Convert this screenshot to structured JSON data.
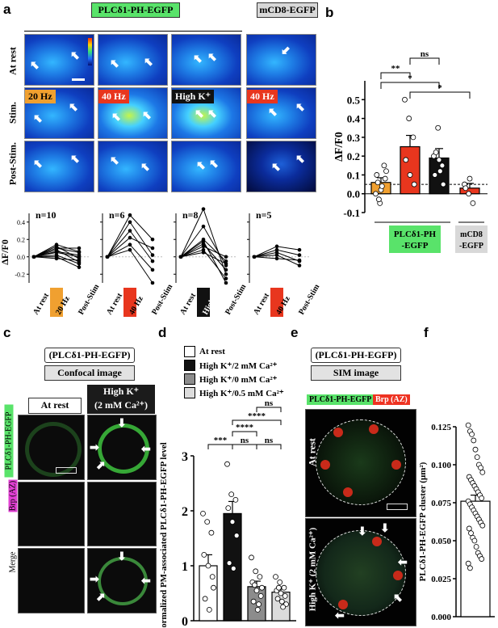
{
  "panel_labels": {
    "a": "a",
    "b": "b",
    "c": "c",
    "d": "d",
    "e": "e",
    "f": "f"
  },
  "panel_a": {
    "header_plc": "PLCδ1-PH-EGFP",
    "header_mcd8": "mCD8-EGFP",
    "row_labels": [
      "At rest",
      "Stim.",
      "Post-Stim."
    ],
    "stim_tags": [
      "20 Hz",
      "40 Hz",
      "High K⁺",
      "40 Hz"
    ],
    "colors": {
      "orange": "#f0a030",
      "red": "#e8361e",
      "black": "#111111",
      "green": "#59e36a",
      "grey": "#cfcfcf"
    }
  },
  "chart_data": [
    {
      "id": "a_plots",
      "type": "line",
      "ylabel": "ΔF/F0",
      "ylim": [
        -0.3,
        0.5
      ],
      "yticks": [
        -0.2,
        0.0,
        0.2,
        0.4
      ],
      "subplots": [
        {
          "n_label": "n=10",
          "categories": [
            "At rest",
            "20 Hz",
            "Post-Stim"
          ],
          "tag_color": "#f0a030",
          "lines": [
            [
              0,
              0.05,
              0.0
            ],
            [
              0,
              0.1,
              0.05
            ],
            [
              0,
              0.12,
              -0.02
            ],
            [
              0,
              0.08,
              -0.06
            ],
            [
              0,
              0.02,
              -0.08
            ],
            [
              0,
              0.0,
              -0.12
            ],
            [
              0,
              0.14,
              0.06
            ],
            [
              0,
              0.06,
              0.02
            ],
            [
              0,
              -0.02,
              -0.04
            ],
            [
              0,
              0.1,
              0.1
            ]
          ]
        },
        {
          "n_label": "n=6",
          "categories": [
            "At rest",
            "40 Hz",
            "Post-Stim"
          ],
          "tag_color": "#e8361e",
          "lines": [
            [
              0,
              0.48,
              0.2
            ],
            [
              0,
              0.4,
              0.02
            ],
            [
              0,
              0.3,
              -0.05
            ],
            [
              0,
              0.22,
              0.1
            ],
            [
              0,
              0.14,
              -0.15
            ],
            [
              0,
              0.08,
              -0.3
            ]
          ]
        },
        {
          "n_label": "n=8",
          "categories": [
            "At rest",
            "High K⁺",
            "Post-Stim"
          ],
          "tag_color": "#111111",
          "lines": [
            [
              0,
              0.55,
              -0.2
            ],
            [
              0,
              0.35,
              -0.1
            ],
            [
              0,
              0.2,
              -0.05
            ],
            [
              0,
              0.15,
              -0.15
            ],
            [
              0,
              0.12,
              0.0
            ],
            [
              0,
              0.08,
              -0.25
            ],
            [
              0,
              0.05,
              -0.08
            ],
            [
              0,
              0.18,
              -0.3
            ]
          ]
        },
        {
          "n_label": "n=5",
          "categories": [
            "At rest",
            "40 Hz",
            "Post-Stim"
          ],
          "tag_color": "#e8361e",
          "lines": [
            [
              0,
              0.12,
              0.08
            ],
            [
              0,
              0.08,
              0.02
            ],
            [
              0,
              0.05,
              -0.05
            ],
            [
              0,
              0.02,
              -0.1
            ],
            [
              0,
              -0.02,
              -0.04
            ]
          ]
        }
      ]
    },
    {
      "id": "b",
      "type": "bar",
      "ylabel": "ΔF/F0",
      "ylim": [
        -0.1,
        0.6
      ],
      "yticks": [
        -0.1,
        0.0,
        0.1,
        0.2,
        0.3,
        0.4,
        0.5
      ],
      "values": [
        0.06,
        0.25,
        0.19,
        0.03
      ],
      "errors": [
        0.025,
        0.06,
        0.05,
        0.025
      ],
      "colors": [
        "#f0a030",
        "#e8361e",
        "#111111",
        "#e8361e"
      ],
      "points": [
        [
          0.0,
          -0.05,
          0.15,
          0.1,
          0.02,
          0.08,
          0.06,
          0.04,
          0.12,
          -0.03
        ],
        [
          0.5,
          0.4,
          0.3,
          0.18,
          0.1,
          0.05
        ],
        [
          0.2,
          0.35,
          0.15,
          0.1,
          0.18,
          0.05,
          0.22,
          0.12
        ],
        [
          0.05,
          0.0,
          -0.05,
          0.03,
          0.08
        ]
      ],
      "group_labels": [
        "PLCδ1-PH\n-EGFP",
        "mCD8\n-EGFP"
      ],
      "dashed_level": 0.05,
      "significance": [
        "ns",
        "**",
        "*",
        "*"
      ]
    },
    {
      "id": "d",
      "type": "bar",
      "ylabel": "Normalized  PM-associated PLCδ1-PH-EGFP  level",
      "ylim": [
        0,
        3
      ],
      "yticks": [
        0,
        1,
        2,
        3
      ],
      "categories": [
        "At rest",
        "High K⁺/2 mM Ca²⁺",
        "High K⁺/0 mM Ca²⁺",
        "High K⁺/0.5 mM Ca²⁺"
      ],
      "values": [
        1.0,
        1.95,
        0.62,
        0.52
      ],
      "errors": [
        0.2,
        0.22,
        0.1,
        0.06
      ],
      "colors": [
        "#ffffff",
        "#111111",
        "#8c8c8c",
        "#dcdcdc"
      ],
      "points": [
        [
          1.95,
          1.8,
          1.6,
          1.2,
          1.0,
          0.8,
          0.4,
          0.2,
          0.6
        ],
        [
          2.85,
          2.3,
          2.2,
          2.05,
          1.8,
          1.55,
          1.05,
          0.95
        ],
        [
          1.15,
          0.9,
          0.8,
          0.7,
          0.55,
          0.45,
          0.35,
          0.2,
          0.6,
          0.65,
          0.3
        ],
        [
          0.8,
          0.7,
          0.6,
          0.55,
          0.5,
          0.45,
          0.4,
          0.35,
          0.3,
          0.6,
          0.25
        ]
      ],
      "significance": [
        "ns",
        "****",
        "****",
        "***",
        "ns",
        "ns"
      ]
    },
    {
      "id": "f",
      "type": "bar",
      "ylabel": "PLCδ1-PH-EGFP cluster (μm²)",
      "ylim": [
        0,
        0.125
      ],
      "yticks": [
        0.0,
        0.025,
        0.05,
        0.075,
        0.1,
        0.125
      ],
      "ytick_labels": [
        "0.000",
        "0.025",
        "0.050",
        "0.075",
        "0.100",
        "0.125"
      ],
      "values": [
        0.076
      ],
      "errors": [
        0.004
      ],
      "colors": [
        "#ffffff"
      ],
      "points": [
        [
          0.126,
          0.122,
          0.12,
          0.116,
          0.11,
          0.105,
          0.1,
          0.098,
          0.095,
          0.092,
          0.09,
          0.088,
          0.086,
          0.084,
          0.082,
          0.08,
          0.078,
          0.076,
          0.074,
          0.072,
          0.07,
          0.068,
          0.066,
          0.064,
          0.062,
          0.06,
          0.058,
          0.055,
          0.052,
          0.05,
          0.046,
          0.042,
          0.04,
          0.038,
          0.035,
          0.032
        ]
      ]
    }
  ],
  "panel_c": {
    "title": "(PLCδ1-PH-EGFP)",
    "subtitle": "Confocal image",
    "col_rest": "At rest",
    "col_highk": "High K⁺\n(2 mM Ca²⁺)",
    "row_labels": [
      "PLCδ1-PH-EGFP",
      "Brp (AZ)",
      "Merge"
    ]
  },
  "panel_d_legend": [
    "At rest",
    "High K⁺/2 mM Ca²⁺",
    "High K⁺/0 mM Ca²⁺",
    "High K⁺/0.5 mM Ca²⁺"
  ],
  "panel_e": {
    "title": "(PLCδ1-PH-EGFP)",
    "subtitle": "SIM image",
    "legend_green": "PLCδ1-PH-EGFP",
    "legend_red": "Brp (AZ)",
    "row_labels": [
      "At rest",
      "High K⁺ (2 mM Ca²⁺)"
    ]
  }
}
